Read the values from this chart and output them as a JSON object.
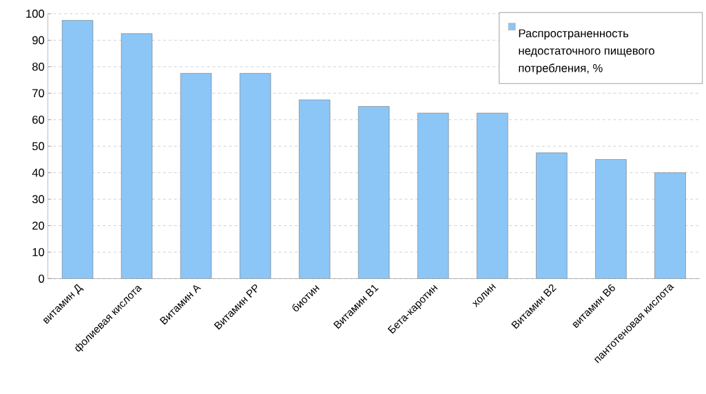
{
  "chart_data": {
    "type": "bar",
    "categories": [
      "витамин Д",
      "фолиевая кислота",
      "Витамин А",
      "Витамин РР",
      "биотин",
      "Витамин В1",
      "Бета-каротин",
      "холин",
      "Витамин В2",
      "витамин В6",
      "пантотеновая кислота"
    ],
    "series": [
      {
        "name": "Распространенность недостаточного пищевого потребления, %",
        "color": "#8cc6f7",
        "values": [
          97.5,
          92.5,
          77.5,
          77.5,
          67.5,
          65,
          62.5,
          62.5,
          47.5,
          45,
          40
        ]
      }
    ],
    "ylim": [
      0,
      100
    ],
    "yticks": [
      0,
      10,
      20,
      30,
      40,
      50,
      60,
      70,
      80,
      90,
      100
    ],
    "grid": "y",
    "legend": "top right"
  }
}
